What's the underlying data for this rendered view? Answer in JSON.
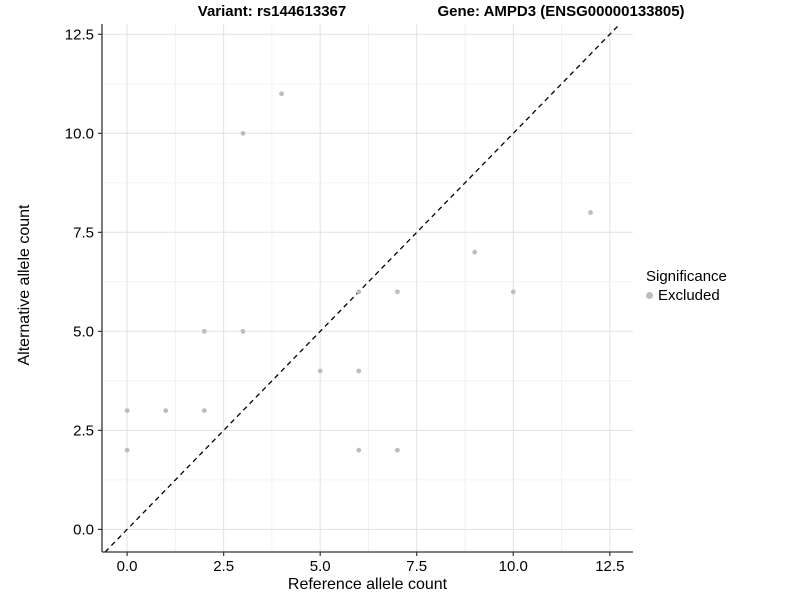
{
  "header": {
    "left_title": "Variant: rs144613367",
    "right_title": "Gene: AMPD3 (ENSG00000133805)"
  },
  "chart_data": {
    "type": "scatter",
    "title_left": "Variant: rs144613367",
    "title_right": "Gene: AMPD3 (ENSG00000133805)",
    "xlabel": "Reference allele count",
    "ylabel": "Alternative allele count",
    "xlim": [
      -0.65,
      13.1
    ],
    "ylim": [
      -0.57,
      12.76
    ],
    "x_ticks": [
      0,
      2.5,
      5,
      7.5,
      10,
      12.5
    ],
    "x_tick_labels": [
      "0.0",
      "2.5",
      "5.0",
      "7.5",
      "10.0",
      "12.5"
    ],
    "y_ticks": [
      0,
      2.5,
      5,
      7.5,
      10,
      12.5
    ],
    "y_tick_labels": [
      "0.0",
      "2.5",
      "5.0",
      "7.5",
      "10.0",
      "12.5"
    ],
    "minor_gridlines": [
      1.25,
      3.75,
      6.25,
      8.75,
      11.25
    ],
    "grid": true,
    "series": [
      {
        "name": "Excluded",
        "color": "#bdbdbd",
        "points": [
          [
            0,
            2
          ],
          [
            0,
            3
          ],
          [
            1,
            3
          ],
          [
            2,
            3
          ],
          [
            2,
            5
          ],
          [
            3,
            5
          ],
          [
            3,
            10
          ],
          [
            4,
            11
          ],
          [
            5,
            4
          ],
          [
            6,
            2
          ],
          [
            6,
            4
          ],
          [
            6,
            6
          ],
          [
            7,
            2
          ],
          [
            7,
            6
          ],
          [
            9,
            7
          ],
          [
            10,
            6
          ],
          [
            12,
            8
          ]
        ]
      }
    ],
    "identity_line": {
      "equation": "y = x",
      "style": "dashed",
      "color": "#000000"
    },
    "legend_position": "right"
  },
  "legend": {
    "title": "Significance",
    "items": [
      {
        "label": "Excluded",
        "color": "#bdbdbd"
      }
    ]
  },
  "colors": {
    "point": "#bdbdbd",
    "grid_major": "#e4e4e4",
    "grid_minor": "#f1f1f1",
    "axis_line": "#333333",
    "tick": "#333333",
    "text": "#000000",
    "background": "#ffffff"
  }
}
